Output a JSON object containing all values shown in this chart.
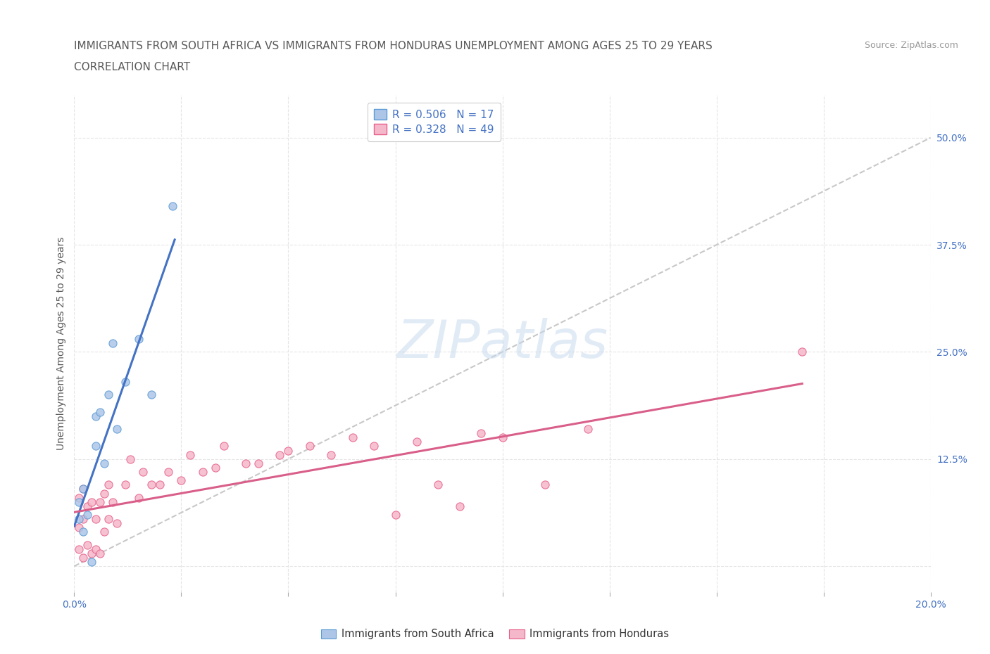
{
  "title_line1": "IMMIGRANTS FROM SOUTH AFRICA VS IMMIGRANTS FROM HONDURAS UNEMPLOYMENT AMONG AGES 25 TO 29 YEARS",
  "title_line2": "CORRELATION CHART",
  "source_text": "Source: ZipAtlas.com",
  "ylabel": "Unemployment Among Ages 25 to 29 years",
  "xlim": [
    0.0,
    0.2
  ],
  "ylim": [
    -0.03,
    0.55
  ],
  "xtick_positions": [
    0.0,
    0.025,
    0.05,
    0.075,
    0.1,
    0.125,
    0.15,
    0.175,
    0.2
  ],
  "xtick_labels": [
    "0.0%",
    "",
    "",
    "",
    "",
    "",
    "",
    "",
    "20.0%"
  ],
  "ytick_positions": [
    0.0,
    0.125,
    0.25,
    0.375,
    0.5
  ],
  "ytick_labels": [
    "",
    "12.5%",
    "25.0%",
    "37.5%",
    "50.0%"
  ],
  "R_south_africa": 0.506,
  "N_south_africa": 17,
  "R_honduras": 0.328,
  "N_honduras": 49,
  "color_sa_fill": "#adc6e8",
  "color_sa_edge": "#5b9bd5",
  "color_ho_fill": "#f5b8cb",
  "color_ho_edge": "#e8608a",
  "line_color_sa": "#4472c4",
  "line_color_ho": "#d95f8a",
  "diagonal_color": "#c8c8c8",
  "grid_color": "#e5e5e5",
  "background_color": "#ffffff",
  "title_color": "#595959",
  "tick_color_blue": "#4472c4",
  "tick_color_x": "#595959",
  "ylabel_color": "#595959",
  "title_fontsize": 11,
  "source_fontsize": 9,
  "axis_label_fontsize": 10,
  "tick_fontsize": 10,
  "legend_fontsize": 11,
  "south_africa_x": [
    0.001,
    0.001,
    0.002,
    0.002,
    0.003,
    0.004,
    0.005,
    0.005,
    0.006,
    0.007,
    0.008,
    0.009,
    0.01,
    0.012,
    0.015,
    0.018,
    0.023
  ],
  "south_africa_y": [
    0.055,
    0.075,
    0.04,
    0.09,
    0.06,
    0.005,
    0.14,
    0.175,
    0.18,
    0.12,
    0.2,
    0.26,
    0.16,
    0.215,
    0.265,
    0.2,
    0.42
  ],
  "honduras_x": [
    0.001,
    0.001,
    0.001,
    0.002,
    0.002,
    0.002,
    0.003,
    0.003,
    0.004,
    0.004,
    0.005,
    0.005,
    0.006,
    0.006,
    0.007,
    0.007,
    0.008,
    0.008,
    0.009,
    0.01,
    0.012,
    0.013,
    0.015,
    0.016,
    0.018,
    0.02,
    0.022,
    0.025,
    0.027,
    0.03,
    0.033,
    0.035,
    0.04,
    0.043,
    0.048,
    0.05,
    0.055,
    0.06,
    0.065,
    0.07,
    0.075,
    0.08,
    0.085,
    0.09,
    0.095,
    0.1,
    0.11,
    0.12,
    0.17
  ],
  "honduras_y": [
    0.02,
    0.045,
    0.08,
    0.01,
    0.055,
    0.09,
    0.025,
    0.07,
    0.015,
    0.075,
    0.02,
    0.055,
    0.015,
    0.075,
    0.04,
    0.085,
    0.055,
    0.095,
    0.075,
    0.05,
    0.095,
    0.125,
    0.08,
    0.11,
    0.095,
    0.095,
    0.11,
    0.1,
    0.13,
    0.11,
    0.115,
    0.14,
    0.12,
    0.12,
    0.13,
    0.135,
    0.14,
    0.13,
    0.15,
    0.14,
    0.06,
    0.145,
    0.095,
    0.07,
    0.155,
    0.15,
    0.095,
    0.16,
    0.25
  ],
  "watermark_text": "ZIPatlas",
  "watermark_color": "#c5d8ee",
  "watermark_alpha": 0.5
}
